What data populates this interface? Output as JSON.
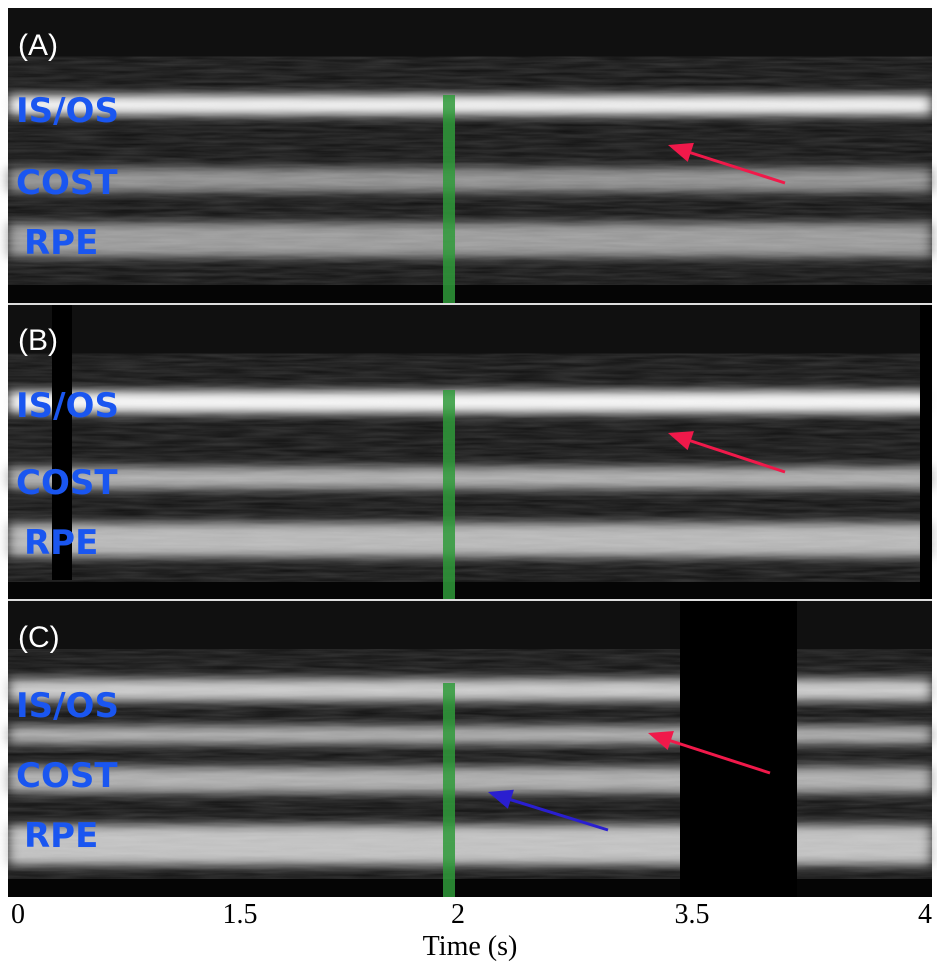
{
  "panels": [
    {
      "label": "(A)",
      "layers": [
        "IS/OS",
        "COST",
        "RPE"
      ]
    },
    {
      "label": "(B)",
      "layers": [
        "IS/OS",
        "COST",
        "RPE"
      ]
    },
    {
      "label": "(C)",
      "layers": [
        "IS/OS",
        "COST",
        "RPE"
      ]
    }
  ],
  "x_axis": {
    "ticks": [
      "0",
      "1.5",
      "2",
      "3.5",
      "4"
    ],
    "label": "Time (s)"
  }
}
